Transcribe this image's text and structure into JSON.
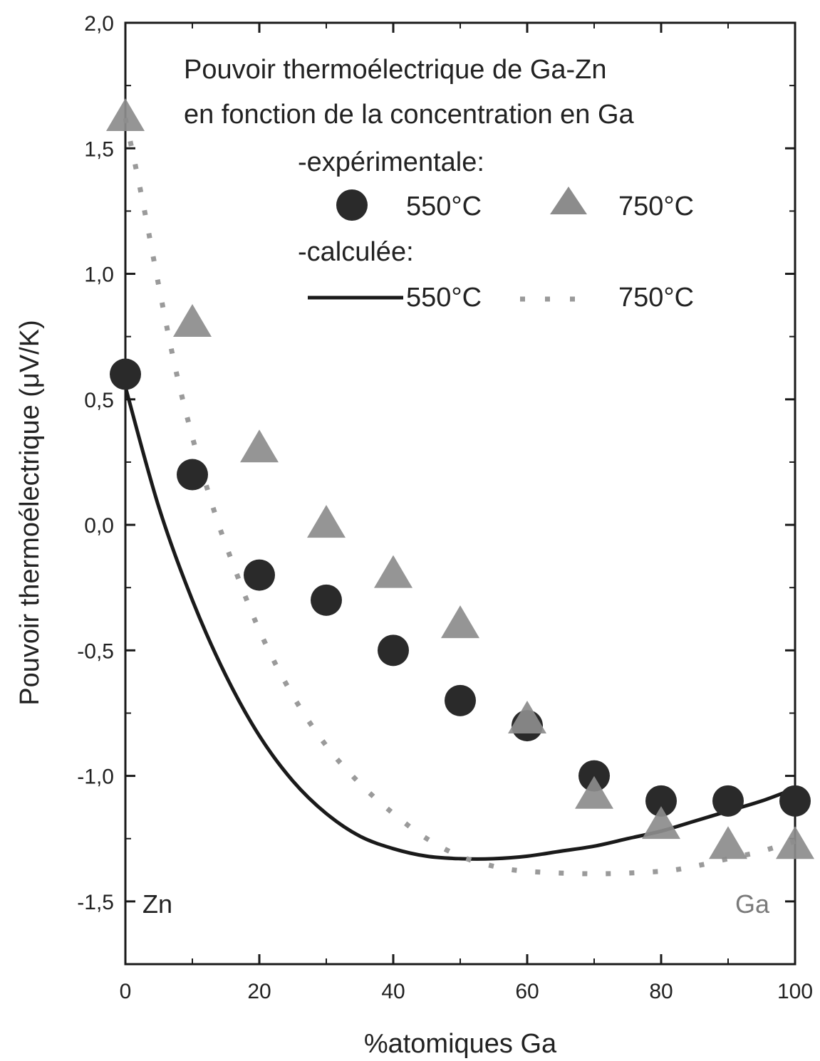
{
  "chart_data": {
    "type": "scatter",
    "title": "",
    "xlabel": "%atomiques Ga",
    "ylabel": "Pouvoir thermoélectrique (μV/K)",
    "xlim": [
      0,
      100
    ],
    "ylim": [
      -1.75,
      2.0
    ],
    "x_ticks": [
      0,
      20,
      40,
      60,
      80,
      100
    ],
    "x_tick_labels": [
      "0",
      "20",
      "40",
      "60",
      "80",
      "100"
    ],
    "y_ticks": [
      2.0,
      1.5,
      1.0,
      0.5,
      0.0,
      -0.5,
      -1.0,
      -1.5
    ],
    "y_tick_labels": [
      "2,0",
      "1,5",
      "1,0",
      "0,5",
      "0,0",
      "-0,5",
      "-1,0",
      "-1,5"
    ],
    "grid": false,
    "legend_position": "top-right",
    "legend": {
      "heading_lines": [
        "Pouvoir thermoélectrique de Ga-Zn",
        "en fonction de la concentration en Ga"
      ],
      "experimental_label": "-expérimentale:",
      "calculated_label": "-calculée:",
      "entries": {
        "exp_550": "550°C",
        "exp_750": "750°C",
        "calc_550": "550°C",
        "calc_750": "750°C"
      }
    },
    "annotations": [
      {
        "text": "Zn",
        "at": "bottom-left",
        "color": "#222222"
      },
      {
        "text": "Ga",
        "at": "bottom-right",
        "color": "#7a7a7a"
      }
    ],
    "series": [
      {
        "name": "550°C",
        "kind": "experimental",
        "marker": "circle",
        "color": "#2a2a2a",
        "x": [
          0,
          10,
          20,
          30,
          40,
          50,
          60,
          70,
          80,
          90,
          100
        ],
        "y": [
          0.6,
          0.2,
          -0.2,
          -0.3,
          -0.5,
          -0.7,
          -0.8,
          -1.0,
          -1.1,
          -1.1,
          -1.1
        ]
      },
      {
        "name": "750°C",
        "kind": "experimental",
        "marker": "triangle",
        "color": "#8c8c8c",
        "x": [
          0,
          10,
          20,
          30,
          40,
          50,
          60,
          70,
          80,
          90,
          100
        ],
        "y": [
          1.62,
          0.8,
          0.3,
          0.0,
          -0.2,
          -0.4,
          -0.78,
          -1.08,
          -1.2,
          -1.28,
          -1.28
        ]
      },
      {
        "name": "550°C",
        "kind": "calculated",
        "line": "solid",
        "color": "#1a1a1a",
        "x": [
          0,
          5,
          10,
          15,
          20,
          25,
          30,
          35,
          40,
          45,
          50,
          55,
          60,
          65,
          70,
          75,
          80,
          85,
          90,
          95,
          100
        ],
        "y": [
          0.55,
          0.07,
          -0.3,
          -0.6,
          -0.84,
          -1.02,
          -1.15,
          -1.24,
          -1.29,
          -1.32,
          -1.33,
          -1.33,
          -1.32,
          -1.3,
          -1.28,
          -1.25,
          -1.22,
          -1.18,
          -1.14,
          -1.1,
          -1.05
        ]
      },
      {
        "name": "750°C",
        "kind": "calculated",
        "line": "dotted",
        "color": "#9a9a9a",
        "x": [
          0,
          2.5,
          5,
          7.5,
          10,
          12.5,
          15,
          20,
          25,
          30,
          35,
          40,
          45,
          50,
          55,
          60,
          70,
          80,
          85,
          90,
          95,
          100
        ],
        "y": [
          1.62,
          1.3,
          0.95,
          0.62,
          0.35,
          0.12,
          -0.08,
          -0.42,
          -0.68,
          -0.88,
          -1.03,
          -1.15,
          -1.25,
          -1.32,
          -1.36,
          -1.38,
          -1.39,
          -1.38,
          -1.36,
          -1.33,
          -1.3,
          -1.26
        ]
      }
    ]
  }
}
